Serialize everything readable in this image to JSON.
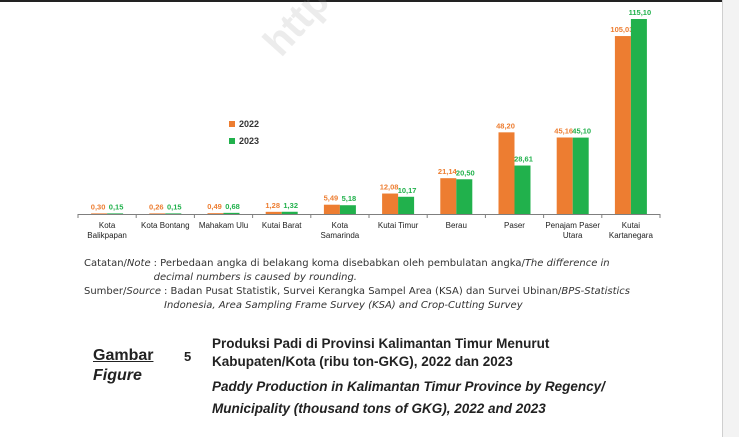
{
  "watermark": "https://kaltim.bps.go.id",
  "chart_data": {
    "type": "bar",
    "categories": [
      "Kota Balikpapan",
      "Kota Bontang",
      "Mahakam Ulu",
      "Kutai Barat",
      "Kota Samarinda",
      "Kutai Timur",
      "Berau",
      "Paser",
      "Penajam Paser Utara",
      "Kutai Kartanegara"
    ],
    "series": [
      {
        "name": "2022",
        "color": "#ED7D31",
        "values": [
          0.3,
          0.26,
          0.49,
          1.28,
          5.49,
          12.08,
          21.14,
          48.2,
          45.16,
          105.03
        ],
        "labels": [
          "0,30",
          "0,26",
          "0,49",
          "1,28",
          "5,49",
          "12,08",
          "21,14",
          "48,20",
          "45,16",
          "105,03"
        ]
      },
      {
        "name": "2023",
        "color": "#21B14C",
        "values": [
          0.15,
          0.15,
          0.68,
          1.32,
          5.18,
          10.17,
          20.5,
          28.61,
          45.1,
          115.1
        ],
        "labels": [
          "0,15",
          "0,15",
          "0,68",
          "1,32",
          "5,18",
          "10,17",
          "20,50",
          "28,61",
          "45,10",
          "115,10"
        ]
      }
    ],
    "ylim": [
      0,
      115.1
    ],
    "grid": false,
    "legend_position": "center-left",
    "title": "",
    "xlabel": "",
    "ylabel": ""
  },
  "notes": {
    "catatan_label": "Catatan/",
    "catatan_label_en": "Note",
    "catatan_text": ": Perbedaan angka di belakang koma disebabkan oleh pembulatan angka/",
    "catatan_text_en": "The difference in decimal numbers is caused by rounding.",
    "sumber_label": "Sumber/",
    "sumber_label_en": "Source",
    "sumber_text": ": Badan Pusat Statistik, Survei Kerangka Sampel Area (KSA) dan Survei Ubinan/",
    "sumber_text_en": "BPS-Statistics Indonesia, Area Sampling Frame Survey (KSA) and Crop-Cutting Survey"
  },
  "figure": {
    "label_id": "Gambar",
    "label_en": "Figure",
    "number": "5",
    "title_id": "Produksi Padi di Provinsi Kalimantan Timur Menurut Kabupaten/Kota (ribu ton-GKG), 2022 dan 2023",
    "title_en": "Paddy Production in Kalimantan Timur Province by Regency/ Municipality (thousand tons of GKG), 2022 and 2023"
  }
}
